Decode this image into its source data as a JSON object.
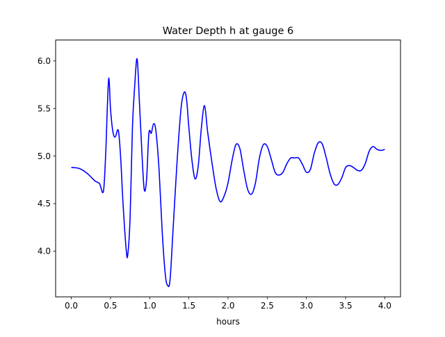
{
  "chart_data": {
    "type": "line",
    "title": "Water Depth h at gauge 6",
    "xlabel": "hours",
    "ylabel": "",
    "xlim": [
      -0.2,
      4.2
    ],
    "ylim": [
      3.52,
      6.22
    ],
    "xticks": [
      0.0,
      0.5,
      1.0,
      1.5,
      2.0,
      2.5,
      3.0,
      3.5,
      4.0
    ],
    "xtick_labels": [
      "0.0",
      "0.5",
      "1.0",
      "1.5",
      "2.0",
      "2.5",
      "3.0",
      "3.5",
      "4.0"
    ],
    "yticks": [
      4.0,
      4.5,
      5.0,
      5.5,
      6.0
    ],
    "ytick_labels": [
      "4.0",
      "4.5",
      "5.0",
      "5.5",
      "6.0"
    ],
    "grid": false,
    "legend": false,
    "series": [
      {
        "color": "#0000ff",
        "x": [
          0.0,
          0.1,
          0.2,
          0.3,
          0.36,
          0.41,
          0.44,
          0.46,
          0.48,
          0.5,
          0.53,
          0.56,
          0.6,
          0.63,
          0.66,
          0.7,
          0.72,
          0.75,
          0.78,
          0.81,
          0.84,
          0.87,
          0.9,
          0.93,
          0.96,
          0.99,
          1.02,
          1.05,
          1.08,
          1.12,
          1.16,
          1.2,
          1.23,
          1.26,
          1.3,
          1.35,
          1.4,
          1.44,
          1.47,
          1.5,
          1.54,
          1.58,
          1.62,
          1.66,
          1.7,
          1.74,
          1.8,
          1.85,
          1.9,
          1.95,
          2.0,
          2.05,
          2.1,
          2.15,
          2.2,
          2.25,
          2.3,
          2.35,
          2.4,
          2.45,
          2.5,
          2.55,
          2.6,
          2.65,
          2.7,
          2.75,
          2.8,
          2.85,
          2.9,
          2.95,
          3.0,
          3.05,
          3.1,
          3.15,
          3.2,
          3.25,
          3.3,
          3.35,
          3.4,
          3.45,
          3.5,
          3.55,
          3.6,
          3.65,
          3.7,
          3.75,
          3.8,
          3.85,
          3.9,
          3.95,
          4.0
        ],
        "y": [
          4.88,
          4.87,
          4.82,
          4.74,
          4.71,
          4.63,
          5.05,
          5.52,
          5.82,
          5.5,
          5.26,
          5.2,
          5.27,
          4.98,
          4.5,
          4.02,
          3.96,
          4.35,
          5.3,
          5.75,
          6.02,
          5.55,
          5.05,
          4.65,
          4.75,
          5.24,
          5.24,
          5.34,
          5.26,
          4.85,
          4.2,
          3.75,
          3.64,
          3.7,
          4.25,
          4.95,
          5.5,
          5.67,
          5.6,
          5.3,
          4.95,
          4.76,
          4.9,
          5.3,
          5.53,
          5.25,
          4.9,
          4.65,
          4.52,
          4.58,
          4.72,
          4.95,
          5.12,
          5.08,
          4.85,
          4.65,
          4.6,
          4.72,
          4.98,
          5.12,
          5.1,
          4.97,
          4.83,
          4.8,
          4.83,
          4.92,
          4.98,
          4.98,
          4.98,
          4.91,
          4.83,
          4.86,
          5.03,
          5.14,
          5.13,
          4.99,
          4.82,
          4.71,
          4.7,
          4.77,
          4.88,
          4.9,
          4.88,
          4.85,
          4.85,
          4.92,
          5.05,
          5.1,
          5.07,
          5.06,
          5.07
        ]
      }
    ]
  }
}
